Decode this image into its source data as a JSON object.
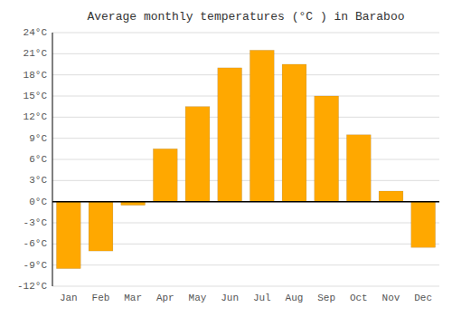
{
  "chart_data": {
    "type": "bar",
    "title": "Average monthly temperatures (°C ) in Baraboo",
    "categories": [
      "Jan",
      "Feb",
      "Mar",
      "Apr",
      "May",
      "Jun",
      "Jul",
      "Aug",
      "Sep",
      "Oct",
      "Nov",
      "Dec"
    ],
    "values": [
      -9.5,
      -7.0,
      -0.5,
      7.5,
      13.5,
      19.0,
      21.5,
      19.5,
      15.0,
      9.5,
      1.5,
      -6.5
    ],
    "color": "#FFA800",
    "ylim": [
      -12,
      24
    ],
    "yticks": [
      {
        "value": -12,
        "label": "-12°C"
      },
      {
        "value": -9,
        "label": "-9°C"
      },
      {
        "value": -6,
        "label": "-6°C"
      },
      {
        "value": -3,
        "label": "-3°C"
      },
      {
        "value": 0,
        "label": "0°C"
      },
      {
        "value": 3,
        "label": "3°C"
      },
      {
        "value": 6,
        "label": "6°C"
      },
      {
        "value": 9,
        "label": "9°C"
      },
      {
        "value": 12,
        "label": "12°C"
      },
      {
        "value": 15,
        "label": "15°C"
      },
      {
        "value": 18,
        "label": "18°C"
      },
      {
        "value": 21,
        "label": "21°C"
      },
      {
        "value": 24,
        "label": "24°C"
      }
    ],
    "grid": true
  }
}
